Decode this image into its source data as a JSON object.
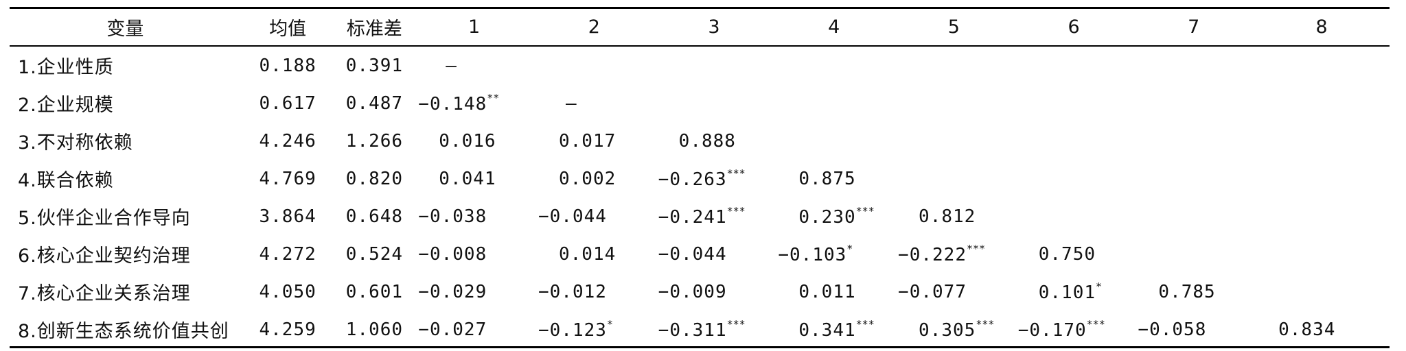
{
  "table": {
    "headers": [
      "变量",
      "均值",
      "标准差",
      "1",
      "2",
      "3",
      "4",
      "5",
      "6",
      "7",
      "8"
    ],
    "rows": [
      {
        "variable": "1.企业性质",
        "mean": "0.188",
        "sd": "0.391",
        "cells": [
          {
            "v": "—",
            "s": ""
          },
          {
            "v": "",
            "s": ""
          },
          {
            "v": "",
            "s": ""
          },
          {
            "v": "",
            "s": ""
          },
          {
            "v": "",
            "s": ""
          },
          {
            "v": "",
            "s": ""
          },
          {
            "v": "",
            "s": ""
          },
          {
            "v": "",
            "s": ""
          }
        ]
      },
      {
        "variable": "2.企业规模",
        "mean": "0.617",
        "sd": "0.487",
        "cells": [
          {
            "v": "−0.148",
            "s": "**"
          },
          {
            "v": "—",
            "s": ""
          },
          {
            "v": "",
            "s": ""
          },
          {
            "v": "",
            "s": ""
          },
          {
            "v": "",
            "s": ""
          },
          {
            "v": "",
            "s": ""
          },
          {
            "v": "",
            "s": ""
          },
          {
            "v": "",
            "s": ""
          }
        ]
      },
      {
        "variable": "3.不对称依赖",
        "mean": "4.246",
        "sd": "1.266",
        "cells": [
          {
            "v": "0.016",
            "s": ""
          },
          {
            "v": "0.017",
            "s": ""
          },
          {
            "v": "0.888",
            "s": ""
          },
          {
            "v": "",
            "s": ""
          },
          {
            "v": "",
            "s": ""
          },
          {
            "v": "",
            "s": ""
          },
          {
            "v": "",
            "s": ""
          },
          {
            "v": "",
            "s": ""
          }
        ]
      },
      {
        "variable": "4.联合依赖",
        "mean": "4.769",
        "sd": "0.820",
        "cells": [
          {
            "v": "0.041",
            "s": ""
          },
          {
            "v": "0.002",
            "s": ""
          },
          {
            "v": "−0.263",
            "s": "***"
          },
          {
            "v": "0.875",
            "s": ""
          },
          {
            "v": "",
            "s": ""
          },
          {
            "v": "",
            "s": ""
          },
          {
            "v": "",
            "s": ""
          },
          {
            "v": "",
            "s": ""
          }
        ]
      },
      {
        "variable": "5.伙伴企业合作导向",
        "mean": "3.864",
        "sd": "0.648",
        "cells": [
          {
            "v": "−0.038",
            "s": ""
          },
          {
            "v": "−0.044",
            "s": ""
          },
          {
            "v": "−0.241",
            "s": "***"
          },
          {
            "v": "0.230",
            "s": "***"
          },
          {
            "v": "0.812",
            "s": ""
          },
          {
            "v": "",
            "s": ""
          },
          {
            "v": "",
            "s": ""
          },
          {
            "v": "",
            "s": ""
          }
        ]
      },
      {
        "variable": "6.核心企业契约治理",
        "mean": "4.272",
        "sd": "0.524",
        "cells": [
          {
            "v": "−0.008",
            "s": ""
          },
          {
            "v": "0.014",
            "s": ""
          },
          {
            "v": "−0.044",
            "s": ""
          },
          {
            "v": "−0.103",
            "s": "*"
          },
          {
            "v": "−0.222",
            "s": "***"
          },
          {
            "v": "0.750",
            "s": ""
          },
          {
            "v": "",
            "s": ""
          },
          {
            "v": "",
            "s": ""
          }
        ]
      },
      {
        "variable": "7.核心企业关系治理",
        "mean": "4.050",
        "sd": "0.601",
        "cells": [
          {
            "v": "−0.029",
            "s": ""
          },
          {
            "v": "−0.012",
            "s": ""
          },
          {
            "v": "−0.009",
            "s": ""
          },
          {
            "v": "0.011",
            "s": ""
          },
          {
            "v": "−0.077",
            "s": ""
          },
          {
            "v": "0.101",
            "s": "*"
          },
          {
            "v": "0.785",
            "s": ""
          },
          {
            "v": "",
            "s": ""
          }
        ]
      },
      {
        "variable": "8.创新生态系统价值共创",
        "mean": "4.259",
        "sd": "1.060",
        "cells": [
          {
            "v": "−0.027",
            "s": ""
          },
          {
            "v": "−0.123",
            "s": "*"
          },
          {
            "v": "−0.311",
            "s": "***"
          },
          {
            "v": "0.341",
            "s": "***"
          },
          {
            "v": "0.305",
            "s": "***"
          },
          {
            "v": "−0.170",
            "s": "***"
          },
          {
            "v": "−0.058",
            "s": ""
          },
          {
            "v": "0.834",
            "s": ""
          }
        ]
      }
    ]
  }
}
